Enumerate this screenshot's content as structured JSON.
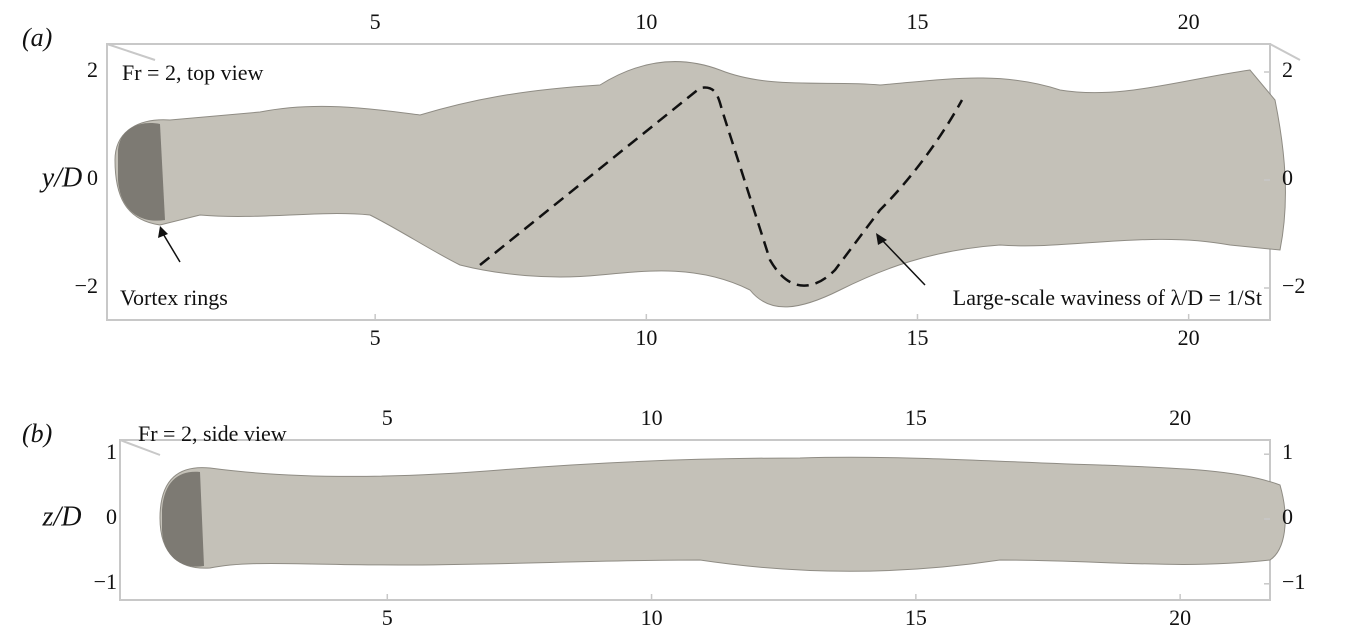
{
  "panels": [
    {
      "label": "(a)",
      "annotation": "Fr = 2, top view",
      "ylabel": "y/D",
      "xlim": [
        0,
        21.5
      ],
      "ylim": [
        -2.5,
        2.5
      ],
      "xticks": [
        5,
        10,
        15,
        20
      ],
      "yticks": [
        {
          "value": -2,
          "label": "−2"
        },
        0,
        2
      ],
      "callouts": [
        "Vortex rings",
        "Large-scale waviness of λ/D = 1/St"
      ]
    },
    {
      "label": "(b)",
      "annotation": "Fr = 2, side view",
      "ylabel": "z/D",
      "xlim": [
        0,
        21.7
      ],
      "ylim": [
        -1.25,
        1.25
      ],
      "xticks": [
        5,
        10,
        15,
        20
      ],
      "yticks": [
        {
          "value": -1,
          "label": "−1"
        },
        0,
        1
      ],
      "callouts": []
    }
  ]
}
